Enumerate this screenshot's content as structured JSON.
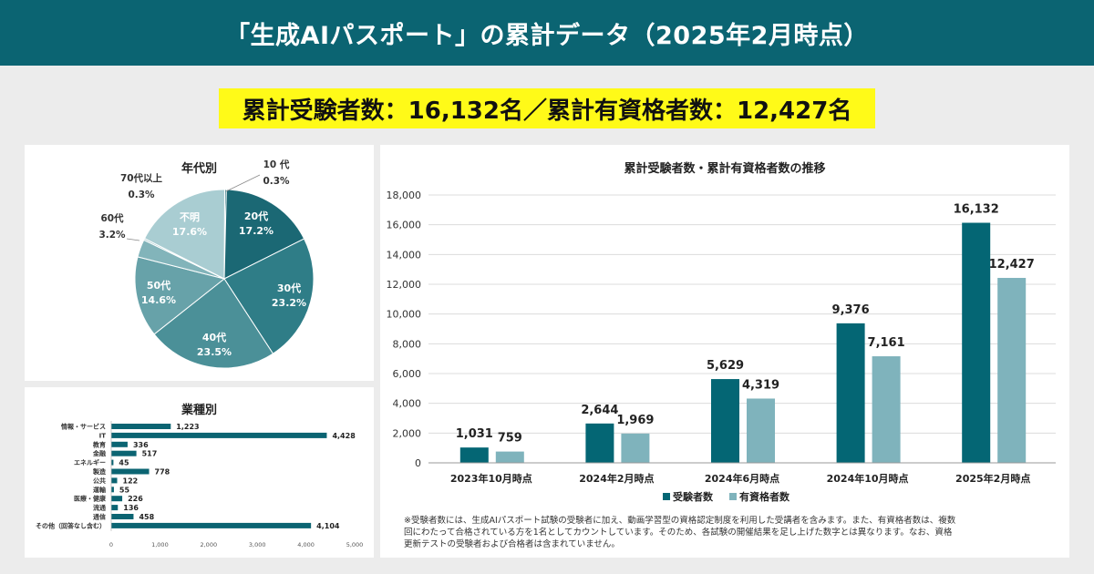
{
  "header": {
    "title": "「生成AIパスポート」の累計データ（2025年2月時点）"
  },
  "summary": {
    "text": "累計受験者数：16,132名／累計有資格者数：12,427名"
  },
  "footnote": {
    "line1": "※受験者数には、生成AIパスポート試験の受験者に加え、動画学習型の資格認定制度を利用した受講者を含みます。また、有資格者数は、複数",
    "line2": "回にわたって合格されている方を1名としてカウントしています。そのため、各試験の開催結果を足し上げた数字とは異なります。なお、資格",
    "line3": "更新テストの受験者および合格者は含まれていません。"
  },
  "colors": {
    "header": "#0b6472",
    "highlight": "#fffa18",
    "dark": "#046674",
    "light": "#7fb3bc"
  },
  "chart_data": [
    {
      "type": "pie",
      "title": "年代別",
      "slices": [
        {
          "label": "10 代",
          "value": 0.3,
          "display": "0.3%",
          "color": "#1b6874"
        },
        {
          "label": "20代",
          "value": 17.2,
          "display": "17.2%",
          "color": "#1b6874"
        },
        {
          "label": "30代",
          "value": 23.2,
          "display": "23.2%",
          "color": "#2f7d87"
        },
        {
          "label": "40代",
          "value": 23.5,
          "display": "23.5%",
          "color": "#4b9098"
        },
        {
          "label": "50代",
          "value": 14.6,
          "display": "14.6%",
          "color": "#67a2a9"
        },
        {
          "label": "60代",
          "value": 3.2,
          "display": "3.2%",
          "color": "#82b4ba"
        },
        {
          "label": "70代以上",
          "value": 0.3,
          "display": "0.3%",
          "color": "#95c0c5"
        },
        {
          "label": "不明",
          "value": 17.6,
          "display": "17.6%",
          "color": "#a9cdd2"
        }
      ]
    },
    {
      "type": "bar",
      "orientation": "horizontal",
      "title": "業種別",
      "categories": [
        "情報・サービス",
        "IT",
        "教育",
        "金融",
        "エネルギー",
        "製造",
        "公共",
        "運輸",
        "医療・健康",
        "流通",
        "通信",
        "その他（回答なし含む）"
      ],
      "values": [
        1223,
        4428,
        336,
        517,
        45,
        778,
        122,
        55,
        226,
        136,
        458,
        4104
      ],
      "value_labels": [
        "1,223",
        "4,428",
        "336",
        "517",
        "45",
        "778",
        "122",
        "55",
        "226",
        "136",
        "458",
        "4,104"
      ],
      "xlim": [
        0,
        5000
      ],
      "xticks": [
        0,
        1000,
        2000,
        3000,
        4000,
        5000
      ],
      "xtick_labels": [
        "0",
        "1,000",
        "2,000",
        "3,000",
        "4,000",
        "5,000"
      ],
      "color": "#0b6472"
    },
    {
      "type": "bar",
      "title": "累計受験者数・累計有資格者数の推移",
      "categories": [
        "2023年10月時点",
        "2024年2月時点",
        "2024年6月時点",
        "2024年10月時点",
        "2025年2月時点"
      ],
      "series": [
        {
          "name": "受験者数",
          "values": [
            1031,
            2644,
            5629,
            9376,
            16132
          ],
          "labels": [
            "1,031",
            "2,644",
            "5,629",
            "9,376",
            "16,132"
          ],
          "color": "#046674"
        },
        {
          "name": "有資格者数",
          "values": [
            759,
            1969,
            4319,
            7161,
            12427
          ],
          "labels": [
            "759",
            "1,969",
            "4,319",
            "7,161",
            "12,427"
          ],
          "color": "#7fb3bc"
        }
      ],
      "ylim": [
        0,
        18000
      ],
      "yticks": [
        0,
        2000,
        4000,
        6000,
        8000,
        10000,
        12000,
        14000,
        16000,
        18000
      ],
      "ytick_labels": [
        "0",
        "2,000",
        "4,000",
        "6,000",
        "8,000",
        "10,000",
        "12,000",
        "14,000",
        "16,000",
        "18,000"
      ],
      "grid": true,
      "legend": "bottom"
    }
  ]
}
